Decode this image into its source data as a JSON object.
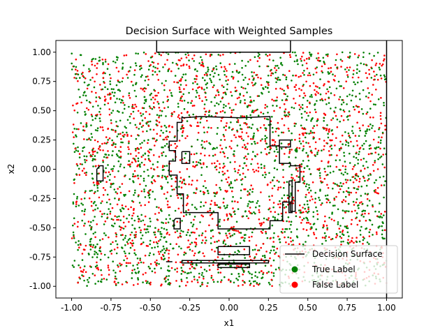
{
  "chart_data": {
    "type": "scatter",
    "title": "Decision Surface with Weighted Samples",
    "xlabel": "x1",
    "ylabel": "x2",
    "xlim": [
      -1.1,
      1.1
    ],
    "ylim": [
      -1.1,
      1.1
    ],
    "grid": false,
    "legend_position": "lower-right",
    "x_ticks": [
      "-1.00",
      "-0.75",
      "-0.50",
      "-0.25",
      "0.00",
      "0.25",
      "0.50",
      "0.75",
      "1.00"
    ],
    "x_tick_values": [
      -1.0,
      -0.75,
      -0.5,
      -0.25,
      0.0,
      0.25,
      0.5,
      0.75,
      1.0
    ],
    "y_ticks": [
      "-1.00",
      "-0.75",
      "-0.50",
      "-0.25",
      "0.00",
      "0.25",
      "0.50",
      "0.75",
      "1.00"
    ],
    "y_tick_values": [
      -1.0,
      -0.75,
      -0.5,
      -0.25,
      0.0,
      0.25,
      0.5,
      0.75,
      1.0
    ],
    "series": [
      {
        "name": "True Label",
        "kind": "scatter",
        "color": "#008000"
      },
      {
        "name": "False Label",
        "kind": "scatter",
        "color": "#ff0000"
      }
    ],
    "decision_surface": {
      "name": "Decision Surface",
      "color": "#000000",
      "contours": [
        [
          [
            -0.46,
            1.1
          ],
          [
            -0.46,
            1.0
          ],
          [
            0.39,
            1.0
          ],
          [
            0.39,
            1.1
          ]
        ],
        [
          [
            1.0,
            1.1
          ],
          [
            1.0,
            -1.1
          ]
        ],
        [
          [
            -0.3,
            0.45
          ],
          [
            -0.29,
            0.44
          ],
          [
            -0.18,
            0.45
          ],
          [
            0.07,
            0.44
          ],
          [
            0.26,
            0.45
          ],
          [
            0.26,
            0.2
          ],
          [
            0.32,
            0.2
          ],
          [
            0.32,
            0.25
          ],
          [
            0.39,
            0.25
          ],
          [
            0.39,
            0.19
          ],
          [
            0.32,
            0.19
          ],
          [
            0.32,
            0.05
          ],
          [
            0.39,
            0.05
          ],
          [
            0.39,
            0.03
          ],
          [
            0.45,
            0.03
          ],
          [
            0.45,
            -0.11
          ],
          [
            0.42,
            -0.11
          ],
          [
            0.42,
            -0.36
          ],
          [
            0.39,
            -0.36
          ],
          [
            0.39,
            -0.28
          ],
          [
            0.34,
            -0.28
          ],
          [
            0.34,
            -0.44
          ],
          [
            0.26,
            -0.44
          ],
          [
            0.26,
            -0.51
          ],
          [
            -0.07,
            -0.51
          ],
          [
            -0.07,
            -0.37
          ],
          [
            -0.29,
            -0.37
          ],
          [
            -0.29,
            -0.21
          ],
          [
            -0.33,
            -0.21
          ],
          [
            -0.33,
            -0.05
          ],
          [
            -0.38,
            -0.05
          ],
          [
            -0.38,
            0.07
          ],
          [
            -0.34,
            0.07
          ],
          [
            -0.34,
            0.16
          ],
          [
            -0.38,
            0.16
          ],
          [
            -0.38,
            0.24
          ],
          [
            -0.33,
            0.24
          ],
          [
            -0.33,
            0.4
          ],
          [
            -0.3,
            0.4
          ],
          [
            -0.3,
            0.45
          ]
        ],
        [
          [
            -0.3,
            0.15
          ],
          [
            -0.25,
            0.15
          ],
          [
            -0.25,
            0.05
          ],
          [
            -0.3,
            0.05
          ],
          [
            -0.3,
            0.15
          ]
        ],
        [
          [
            -0.82,
            0.03
          ],
          [
            -0.8,
            0.03
          ],
          [
            -0.8,
            -0.1
          ],
          [
            -0.84,
            -0.1
          ],
          [
            -0.84,
            0.0
          ],
          [
            -0.82,
            0.03
          ]
        ],
        [
          [
            0.38,
            -0.1
          ],
          [
            0.4,
            -0.1
          ],
          [
            0.4,
            -0.37
          ],
          [
            0.38,
            -0.37
          ],
          [
            0.38,
            -0.1
          ]
        ],
        [
          [
            -0.34,
            -0.42
          ],
          [
            -0.31,
            -0.42
          ],
          [
            -0.31,
            -0.51
          ],
          [
            -0.35,
            -0.51
          ],
          [
            -0.35,
            -0.44
          ],
          [
            -0.34,
            -0.42
          ]
        ],
        [
          [
            -0.07,
            -0.66
          ],
          [
            0.13,
            -0.66
          ],
          [
            0.13,
            -0.73
          ],
          [
            -0.07,
            -0.73
          ],
          [
            -0.07,
            -0.66
          ]
        ],
        [
          [
            -0.4,
            -0.79
          ],
          [
            -0.36,
            -0.79
          ]
        ],
        [
          [
            -0.3,
            -0.78
          ],
          [
            0.25,
            -0.78
          ],
          [
            0.25,
            -0.8
          ],
          [
            -0.3,
            -0.8
          ],
          [
            -0.3,
            -0.78
          ]
        ],
        [
          [
            -0.07,
            -0.81
          ],
          [
            0.13,
            -0.81
          ],
          [
            0.13,
            -0.84
          ],
          [
            -0.07,
            -0.84
          ],
          [
            -0.07,
            -0.81
          ]
        ]
      ]
    }
  }
}
